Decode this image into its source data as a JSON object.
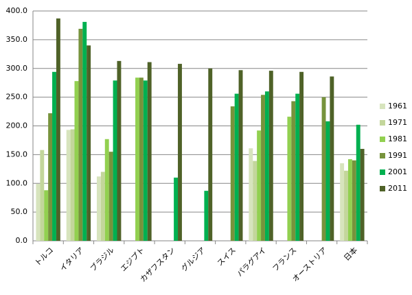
{
  "chart_data": {
    "type": "bar",
    "categories": [
      "トルコ",
      "イタリア",
      "ブラジル",
      "エジプト",
      "カザフスタン",
      "グルジア",
      "スイス",
      "パラグアイ",
      "フランス",
      "オーストリア",
      "日本"
    ],
    "series": [
      {
        "name": "1961",
        "color": "#d7e4bd",
        "values": [
          99,
          193,
          112,
          null,
          null,
          null,
          null,
          161,
          null,
          null,
          135
        ]
      },
      {
        "name": "1971",
        "color": "#c3d69b",
        "values": [
          158,
          194,
          120,
          null,
          null,
          null,
          null,
          139,
          null,
          null,
          122
        ]
      },
      {
        "name": "1981",
        "color": "#92d050",
        "values": [
          88,
          278,
          177,
          284,
          null,
          null,
          null,
          192,
          216,
          null,
          142
        ]
      },
      {
        "name": "1991",
        "color": "#77933c",
        "values": [
          222,
          369,
          155,
          284,
          null,
          null,
          234,
          254,
          243,
          250,
          140
        ]
      },
      {
        "name": "2001",
        "color": "#00b050",
        "values": [
          294,
          381,
          279,
          279,
          110,
          87,
          256,
          260,
          256,
          208,
          202
        ]
      },
      {
        "name": "2011",
        "color": "#4f6228",
        "values": [
          387,
          340,
          313,
          311,
          308,
          300,
          297,
          296,
          294,
          286,
          160
        ]
      }
    ],
    "ylim": [
      0,
      400
    ],
    "yticks": [
      {
        "value": 0,
        "label": "0.0"
      },
      {
        "value": 50,
        "label": "50.0"
      },
      {
        "value": 100,
        "label": "100.0"
      },
      {
        "value": 150,
        "label": "150.0"
      },
      {
        "value": 200,
        "label": "200.0"
      },
      {
        "value": 250,
        "label": "250.0"
      },
      {
        "value": 300,
        "label": "300.0"
      },
      {
        "value": 350,
        "label": "350.0"
      },
      {
        "value": 400,
        "label": "400.0"
      }
    ],
    "grid": true,
    "legend": "right"
  }
}
